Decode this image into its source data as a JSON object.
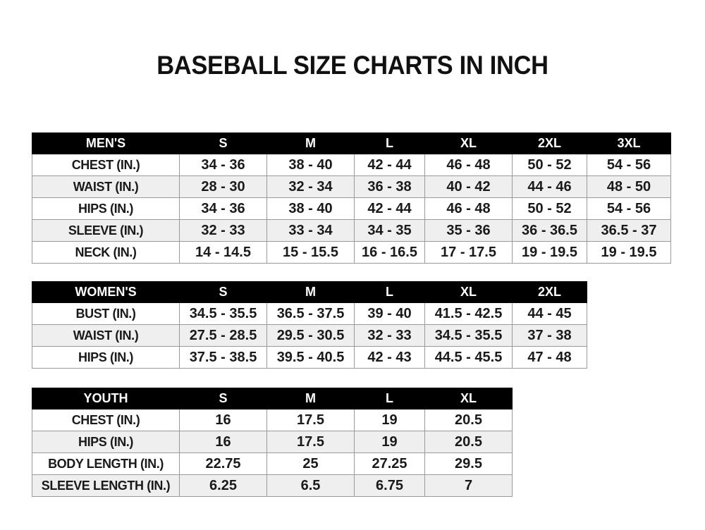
{
  "title": "BASEBALL SIZE CHARTS IN INCH",
  "colors": {
    "header_bg": "#000000",
    "header_text": "#ffffff",
    "alt_row": "#efefef",
    "border": "#9a9a9a"
  },
  "tables": [
    {
      "id": "men",
      "header": [
        "MEN'S",
        "S",
        "M",
        "L",
        "XL",
        "2XL",
        "3XL"
      ],
      "rows": [
        [
          "CHEST (IN.)",
          "34 - 36",
          "38 - 40",
          "42 - 44",
          "46 - 48",
          "50 - 52",
          "54 - 56"
        ],
        [
          "WAIST (IN.)",
          "28 - 30",
          "32 - 34",
          "36 - 38",
          "40 - 42",
          "44 - 46",
          "48 - 50"
        ],
        [
          "HIPS (IN.)",
          "34 - 36",
          "38 - 40",
          "42 - 44",
          "46 - 48",
          "50 - 52",
          "54 - 56"
        ],
        [
          "SLEEVE (IN.)",
          "32 - 33",
          "33 - 34",
          "34 - 35",
          "35 - 36",
          "36 - 36.5",
          "36.5 - 37"
        ],
        [
          "NECK (IN.)",
          "14 - 14.5",
          "15 - 15.5",
          "16 - 16.5",
          "17 - 17.5",
          "19 - 19.5",
          "19 - 19.5"
        ]
      ]
    },
    {
      "id": "women",
      "header": [
        "WOMEN'S",
        "S",
        "M",
        "L",
        "XL",
        "2XL"
      ],
      "rows": [
        [
          "BUST (IN.)",
          "34.5 - 35.5",
          "36.5 - 37.5",
          "39 - 40",
          "41.5 - 42.5",
          "44 - 45"
        ],
        [
          "WAIST (IN.)",
          "27.5 - 28.5",
          "29.5 - 30.5",
          "32 - 33",
          "34.5 - 35.5",
          "37 - 38"
        ],
        [
          "HIPS (IN.)",
          "37.5 - 38.5",
          "39.5 - 40.5",
          "42 - 43",
          "44.5 - 45.5",
          "47 - 48"
        ]
      ]
    },
    {
      "id": "youth",
      "header": [
        "YOUTH",
        "S",
        "M",
        "L",
        "XL"
      ],
      "rows": [
        [
          "CHEST (IN.)",
          "16",
          "17.5",
          "19",
          "20.5"
        ],
        [
          "HIPS (IN.)",
          "16",
          "17.5",
          "19",
          "20.5"
        ],
        [
          "BODY LENGTH (IN.)",
          "22.75",
          "25",
          "27.25",
          "29.5"
        ],
        [
          "SLEEVE LENGTH (IN.)",
          "6.25",
          "6.5",
          "6.75",
          "7"
        ]
      ]
    }
  ]
}
